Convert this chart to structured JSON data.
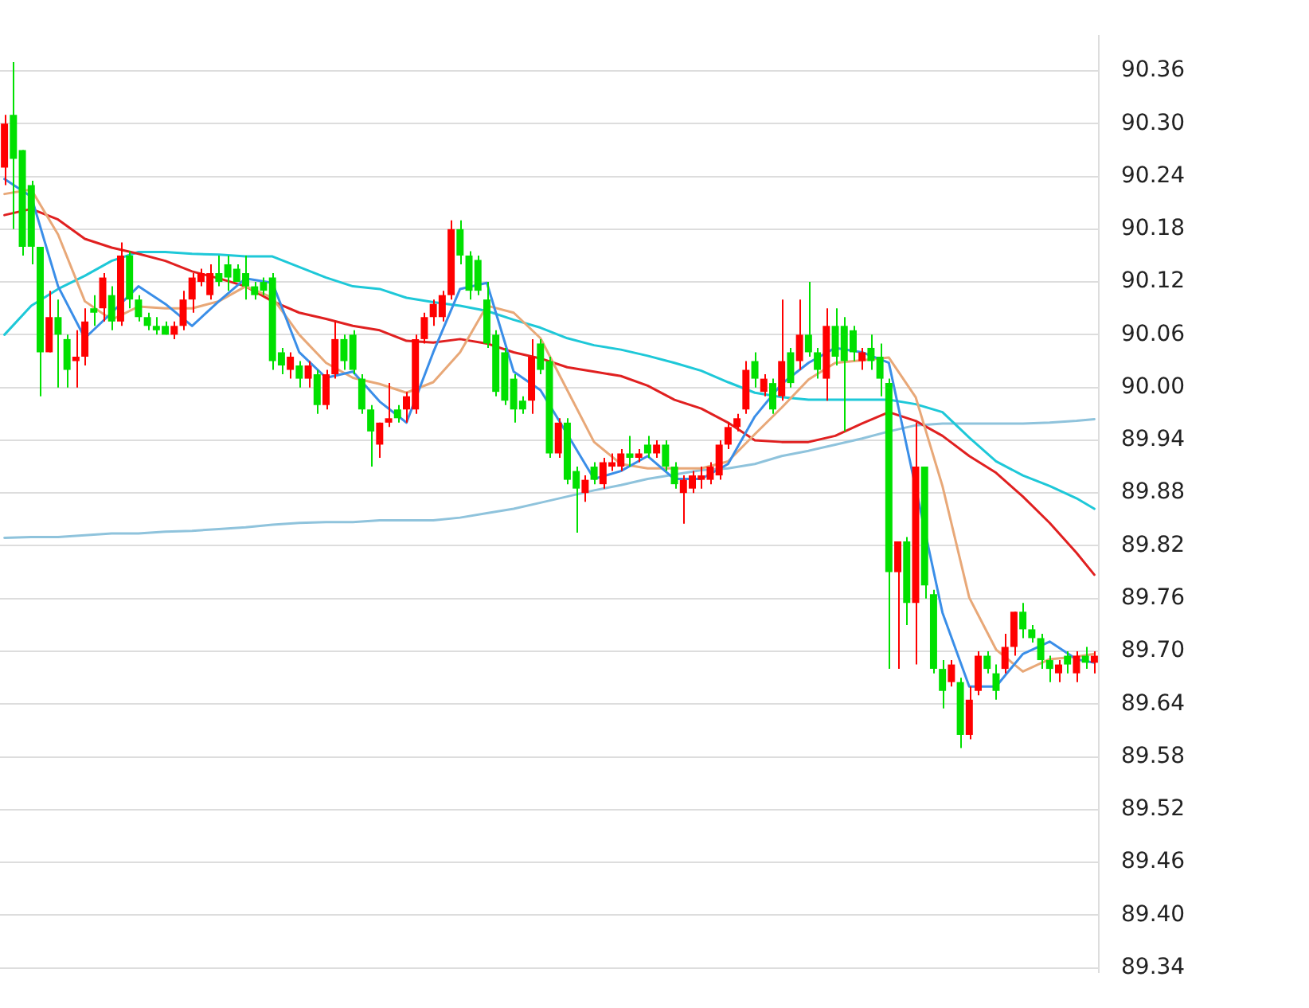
{
  "chart_data": {
    "type": "candlestick",
    "categories": [
      null,
      null,
      null,
      null,
      null,
      null,
      null,
      null,
      null,
      null,
      null,
      null,
      null,
      null,
      null,
      null,
      null,
      null,
      null,
      null,
      null,
      null,
      null,
      null,
      null,
      null,
      null,
      null,
      null,
      null,
      null,
      null,
      null,
      null,
      null,
      null,
      null,
      null,
      null,
      null,
      null,
      null,
      null,
      null,
      null,
      null,
      null,
      null,
      null,
      null,
      null,
      null,
      null,
      null,
      null,
      null,
      null,
      null,
      null,
      null,
      null,
      null,
      null,
      null,
      null,
      null,
      null,
      null,
      null,
      null,
      null,
      null,
      null,
      null,
      null,
      null,
      null,
      null,
      null,
      null,
      null,
      null,
      null,
      null,
      null,
      null,
      null,
      null,
      null,
      null,
      null,
      null,
      null,
      null,
      null,
      null,
      null,
      null,
      null,
      null,
      null,
      null,
      null,
      null,
      null,
      null,
      null,
      null,
      null,
      null,
      null,
      null,
      null,
      null,
      null,
      null,
      null,
      null,
      null,
      null,
      null,
      null,
      null
    ],
    "ohlc": [
      [
        90.25,
        90.31,
        90.23,
        90.3
      ],
      [
        90.31,
        90.37,
        90.18,
        90.26
      ],
      [
        90.27,
        90.27,
        90.15,
        90.16
      ],
      [
        90.23,
        90.235,
        90.14,
        90.16
      ],
      [
        90.16,
        90.16,
        89.99,
        90.04
      ],
      [
        90.04,
        90.11,
        90.04,
        90.08
      ],
      [
        90.08,
        90.1,
        90.0,
        90.06
      ],
      [
        90.055,
        90.06,
        90.0,
        90.02
      ],
      [
        90.03,
        90.065,
        90.0,
        90.035
      ],
      [
        90.035,
        90.09,
        90.025,
        90.075
      ],
      [
        90.09,
        90.105,
        90.07,
        90.085
      ],
      [
        90.09,
        90.13,
        90.075,
        90.125
      ],
      [
        90.105,
        90.115,
        90.065,
        90.075
      ],
      [
        90.075,
        90.165,
        90.07,
        90.15
      ],
      [
        90.15,
        90.155,
        90.09,
        90.1
      ],
      [
        90.1,
        90.105,
        90.075,
        90.08
      ],
      [
        90.08,
        90.085,
        90.065,
        90.07
      ],
      [
        90.07,
        90.08,
        90.06,
        90.065
      ],
      [
        90.07,
        90.075,
        90.06,
        90.06
      ],
      [
        90.06,
        90.075,
        90.055,
        90.07
      ],
      [
        90.07,
        90.11,
        90.065,
        90.1
      ],
      [
        90.1,
        90.13,
        90.085,
        90.125
      ],
      [
        90.12,
        90.135,
        90.115,
        90.13
      ],
      [
        90.105,
        90.14,
        90.1,
        90.13
      ],
      [
        90.13,
        90.15,
        90.115,
        90.12
      ],
      [
        90.14,
        90.15,
        90.11,
        90.125
      ],
      [
        90.135,
        90.14,
        90.12,
        90.12
      ],
      [
        90.13,
        90.15,
        90.1,
        90.115
      ],
      [
        90.115,
        90.12,
        90.1,
        90.105
      ],
      [
        90.12,
        90.125,
        90.105,
        90.11
      ],
      [
        90.125,
        90.13,
        90.02,
        90.03
      ],
      [
        90.04,
        90.045,
        90.015,
        90.025
      ],
      [
        90.02,
        90.04,
        90.01,
        90.035
      ],
      [
        90.025,
        90.03,
        90.0,
        90.01
      ],
      [
        90.01,
        90.03,
        90.0,
        90.025
      ],
      [
        90.015,
        90.02,
        89.97,
        89.98
      ],
      [
        89.98,
        90.02,
        89.975,
        90.015
      ],
      [
        90.015,
        90.075,
        90.01,
        90.055
      ],
      [
        90.055,
        90.06,
        90.02,
        90.03
      ],
      [
        90.06,
        90.065,
        90.015,
        90.02
      ],
      [
        90.01,
        90.015,
        89.97,
        89.975
      ],
      [
        89.975,
        89.98,
        89.91,
        89.95
      ],
      [
        89.935,
        89.96,
        89.92,
        89.96
      ],
      [
        89.96,
        90.005,
        89.955,
        89.965
      ],
      [
        89.975,
        89.98,
        89.96,
        89.965
      ],
      [
        89.975,
        89.995,
        89.96,
        89.99
      ],
      [
        89.975,
        90.06,
        89.97,
        90.055
      ],
      [
        90.055,
        90.085,
        90.05,
        90.08
      ],
      [
        90.08,
        90.1,
        90.07,
        90.095
      ],
      [
        90.08,
        90.11,
        90.075,
        90.105
      ],
      [
        90.105,
        90.19,
        90.1,
        90.18
      ],
      [
        90.18,
        90.19,
        90.14,
        90.15
      ],
      [
        90.15,
        90.155,
        90.1,
        90.11
      ],
      [
        90.145,
        90.15,
        90.105,
        90.11
      ],
      [
        90.1,
        90.12,
        90.045,
        90.05
      ],
      [
        90.06,
        90.065,
        89.99,
        89.995
      ],
      [
        90.04,
        90.045,
        89.98,
        89.985
      ],
      [
        90.01,
        90.015,
        89.96,
        89.975
      ],
      [
        89.985,
        89.99,
        89.97,
        89.975
      ],
      [
        89.985,
        90.055,
        89.97,
        90.035
      ],
      [
        90.05,
        90.055,
        90.015,
        90.02
      ],
      [
        90.03,
        90.035,
        89.92,
        89.925
      ],
      [
        89.925,
        89.965,
        89.92,
        89.96
      ],
      [
        89.96,
        89.965,
        89.89,
        89.895
      ],
      [
        89.905,
        89.91,
        89.835,
        89.885
      ],
      [
        89.88,
        89.9,
        89.87,
        89.895
      ],
      [
        89.91,
        89.915,
        89.89,
        89.895
      ],
      [
        89.89,
        89.92,
        89.885,
        89.915
      ],
      [
        89.91,
        89.925,
        89.905,
        89.915
      ],
      [
        89.91,
        89.93,
        89.905,
        89.925
      ],
      [
        89.925,
        89.945,
        89.91,
        89.92
      ],
      [
        89.92,
        89.93,
        89.915,
        89.925
      ],
      [
        89.935,
        89.945,
        89.92,
        89.925
      ],
      [
        89.925,
        89.94,
        89.92,
        89.935
      ],
      [
        89.935,
        89.94,
        89.905,
        89.91
      ],
      [
        89.91,
        89.915,
        89.885,
        89.89
      ],
      [
        89.88,
        89.9,
        89.845,
        89.895
      ],
      [
        89.885,
        89.905,
        89.88,
        89.9
      ],
      [
        89.895,
        89.91,
        89.885,
        89.9
      ],
      [
        89.895,
        89.915,
        89.89,
        89.91
      ],
      [
        89.9,
        89.94,
        89.895,
        89.935
      ],
      [
        89.935,
        89.96,
        89.93,
        89.955
      ],
      [
        89.955,
        89.97,
        89.95,
        89.965
      ],
      [
        89.975,
        90.03,
        89.97,
        90.02
      ],
      [
        90.03,
        90.04,
        90.0,
        90.01
      ],
      [
        89.995,
        90.015,
        89.99,
        90.01
      ],
      [
        90.005,
        90.01,
        89.97,
        89.975
      ],
      [
        89.99,
        90.1,
        89.985,
        90.03
      ],
      [
        90.04,
        90.045,
        90.0,
        90.005
      ],
      [
        90.03,
        90.1,
        90.02,
        90.06
      ],
      [
        90.06,
        90.12,
        90.035,
        90.04
      ],
      [
        90.04,
        90.045,
        90.01,
        90.02
      ],
      [
        90.01,
        90.09,
        89.985,
        90.07
      ],
      [
        90.07,
        90.09,
        90.025,
        90.035
      ],
      [
        90.07,
        90.08,
        89.95,
        90.03
      ],
      [
        90.065,
        90.07,
        90.03,
        90.04
      ],
      [
        90.03,
        90.045,
        90.02,
        90.04
      ],
      [
        90.045,
        90.06,
        90.02,
        90.03
      ],
      [
        90.035,
        90.05,
        89.99,
        90.01
      ],
      [
        90.005,
        90.01,
        89.68,
        89.79
      ],
      [
        89.79,
        89.825,
        89.68,
        89.825
      ],
      [
        89.825,
        89.83,
        89.73,
        89.755
      ],
      [
        89.755,
        89.96,
        89.685,
        89.91
      ],
      [
        89.91,
        89.91,
        89.76,
        89.775
      ],
      [
        89.765,
        89.77,
        89.675,
        89.68
      ],
      [
        89.68,
        89.69,
        89.635,
        89.655
      ],
      [
        89.665,
        89.69,
        89.66,
        89.685
      ],
      [
        89.665,
        89.67,
        89.59,
        89.605
      ],
      [
        89.605,
        89.66,
        89.6,
        89.645
      ],
      [
        89.655,
        89.7,
        89.65,
        89.695
      ],
      [
        89.695,
        89.7,
        89.675,
        89.68
      ],
      [
        89.675,
        89.685,
        89.645,
        89.655
      ],
      [
        89.68,
        89.72,
        89.675,
        89.705
      ],
      [
        89.705,
        89.745,
        89.695,
        89.745
      ],
      [
        89.745,
        89.755,
        89.715,
        89.725
      ],
      [
        89.725,
        89.73,
        89.71,
        89.715
      ],
      [
        89.715,
        89.72,
        89.68,
        89.69
      ],
      [
        89.69,
        89.695,
        89.665,
        89.68
      ],
      [
        89.675,
        89.69,
        89.665,
        89.685
      ],
      [
        89.695,
        89.7,
        89.675,
        89.685
      ],
      [
        89.675,
        89.7,
        89.665,
        89.695
      ],
      [
        89.695,
        89.705,
        89.68,
        89.687
      ],
      [
        89.687,
        89.7,
        89.675,
        89.695
      ]
    ],
    "colors": [
      "#ff0000",
      "#00e000",
      "#00e000",
      "#00e000",
      "#00e000",
      "#ff0000",
      "#00e000",
      "#00e000",
      "#ff0000",
      "#ff0000",
      "#00e000",
      "#ff0000",
      "#00e000",
      "#ff0000",
      "#00e000",
      "#00e000",
      "#00e000",
      "#00e000",
      "#00e000",
      "#ff0000",
      "#ff0000",
      "#ff0000",
      "#ff0000",
      "#ff0000",
      "#00e000",
      "#00e000",
      "#00e000",
      "#00e000",
      "#00e000",
      "#00e000",
      "#00e000",
      "#00e000",
      "#ff0000",
      "#00e000",
      "#ff0000",
      "#00e000",
      "#ff0000",
      "#ff0000",
      "#00e000",
      "#00e000",
      "#00e000",
      "#00e000",
      "#ff0000",
      "#ff0000",
      "#00e000",
      "#ff0000",
      "#ff0000",
      "#ff0000",
      "#ff0000",
      "#ff0000",
      "#ff0000",
      "#00e000",
      "#00e000",
      "#00e000",
      "#00e000",
      "#00e000",
      "#00e000",
      "#00e000",
      "#00e000",
      "#ff0000",
      "#00e000",
      "#00e000",
      "#ff0000",
      "#00e000",
      "#00e000",
      "#ff0000",
      "#00e000",
      "#ff0000",
      "#ff0000",
      "#ff0000",
      "#00e000",
      "#ff0000",
      "#00e000",
      "#ff0000",
      "#00e000",
      "#00e000",
      "#ff0000",
      "#ff0000",
      "#ff0000",
      "#ff0000",
      "#ff0000",
      "#ff0000",
      "#ff0000",
      "#ff0000",
      "#00e000",
      "#ff0000",
      "#00e000",
      "#ff0000",
      "#00e000",
      "#ff0000",
      "#00e000",
      "#00e000",
      "#ff0000",
      "#00e000",
      "#00e000",
      "#00e000",
      "#ff0000",
      "#00e000",
      "#00e000",
      "#00e000",
      "#ff0000",
      "#00e000",
      "#ff0000",
      "#00e000",
      "#00e000",
      "#00e000",
      "#ff0000",
      "#00e000",
      "#ff0000",
      "#ff0000",
      "#00e000",
      "#00e000",
      "#ff0000",
      "#ff0000",
      "#00e000",
      "#00e000",
      "#00e000",
      "#00e000",
      "#ff0000",
      "#00e000",
      "#ff0000",
      "#00e000",
      "#ff0000"
    ],
    "series": [
      {
        "type": "line",
        "color": "#3a8ee8",
        "values": [
          90.237,
          null,
          null,
          90.217,
          null,
          null,
          90.115,
          null,
          null,
          90.056,
          null,
          null,
          90.085,
          null,
          null,
          90.115,
          null,
          null,
          90.095,
          null,
          null,
          90.07,
          null,
          null,
          90.098,
          null,
          null,
          90.124,
          null,
          null,
          90.119,
          null,
          null,
          90.04,
          null,
          null,
          90.011,
          null,
          null,
          90.018,
          null,
          null,
          89.984,
          null,
          null,
          89.96,
          null,
          null,
          90.04,
          null,
          null,
          90.112,
          null,
          null,
          90.119,
          null,
          null,
          90.018,
          null,
          null,
          89.997,
          null,
          null,
          89.947,
          null,
          null,
          89.896,
          null,
          null,
          89.905,
          null,
          null,
          89.922,
          null,
          null,
          89.896,
          null,
          null,
          89.896,
          null,
          null,
          89.913,
          null,
          null,
          89.967,
          null,
          null,
          90.004,
          null,
          null,
          90.028,
          null,
          null,
          90.045,
          null,
          null,
          90.04,
          null,
          null,
          90.028,
          null,
          null,
          null,
          null,
          null,
          89.744,
          null,
          null,
          89.66,
          null,
          null,
          89.66,
          null,
          null,
          89.697,
          null,
          null,
          89.711,
          null,
          null,
          89.691,
          null,
          89.687
        ]
      },
      {
        "type": "line",
        "color": "#e8a878",
        "values": [
          90.22,
          null,
          null,
          90.225,
          null,
          null,
          90.174,
          null,
          null,
          90.098,
          null,
          null,
          90.077,
          null,
          null,
          90.092,
          null,
          null,
          90.09,
          null,
          null,
          90.09,
          null,
          null,
          90.098,
          null,
          null,
          90.115,
          null,
          null,
          90.102,
          null,
          null,
          90.06,
          null,
          null,
          90.028,
          null,
          null,
          90.011,
          null,
          null,
          90.004,
          null,
          null,
          89.994,
          null,
          null,
          90.006,
          null,
          null,
          90.04,
          null,
          null,
          90.093,
          null,
          null,
          90.085,
          null,
          null,
          90.056,
          null,
          null,
          89.997,
          null,
          null,
          89.938,
          null,
          null,
          89.913,
          null,
          null,
          89.908,
          null,
          null,
          89.908,
          null,
          null,
          89.908,
          null,
          null,
          89.916,
          null,
          null,
          89.947,
          null,
          null,
          89.977,
          null,
          null,
          90.009,
          null,
          null,
          90.028,
          null,
          null,
          90.031,
          null,
          null,
          90.034,
          null,
          null,
          89.989,
          null,
          null,
          89.888,
          null,
          null,
          89.761,
          null,
          null,
          89.702,
          null,
          null,
          89.677,
          null,
          null,
          89.691,
          null,
          null,
          89.694,
          null,
          89.697
        ]
      },
      {
        "type": "line",
        "color": "#e02020",
        "values": [
          90.196,
          null,
          null,
          90.203,
          null,
          null,
          90.191,
          null,
          null,
          90.169,
          null,
          null,
          90.159,
          null,
          null,
          90.152,
          null,
          null,
          90.144,
          null,
          null,
          90.132,
          null,
          null,
          90.124,
          null,
          null,
          90.115,
          null,
          null,
          90.098,
          null,
          null,
          90.085,
          null,
          null,
          90.078,
          null,
          null,
          90.07,
          null,
          null,
          90.065,
          null,
          null,
          90.053,
          null,
          null,
          90.051,
          null,
          null,
          90.055,
          null,
          null,
          90.05,
          null,
          null,
          90.04,
          null,
          null,
          90.033,
          null,
          null,
          90.023,
          null,
          null,
          90.018,
          null,
          null,
          90.013,
          null,
          null,
          90.002,
          null,
          null,
          89.986,
          null,
          null,
          89.976,
          null,
          null,
          89.96,
          null,
          null,
          89.94,
          null,
          null,
          89.938,
          null,
          null,
          89.938,
          null,
          null,
          89.945,
          null,
          null,
          89.959,
          null,
          null,
          89.972,
          null,
          null,
          89.962,
          null,
          null,
          89.945,
          null,
          null,
          89.922,
          null,
          null,
          89.903,
          null,
          null,
          89.876,
          null,
          null,
          89.846,
          null,
          null,
          89.812,
          null,
          89.787
        ]
      },
      {
        "type": "line",
        "color": "#1ec8d8",
        "values": [
          90.06,
          null,
          null,
          90.093,
          null,
          null,
          90.112,
          null,
          null,
          90.127,
          null,
          null,
          90.144,
          null,
          null,
          90.154,
          null,
          null,
          90.154,
          null,
          null,
          90.152,
          null,
          null,
          90.151,
          null,
          null,
          90.149,
          null,
          null,
          90.149,
          null,
          null,
          90.137,
          null,
          null,
          90.125,
          null,
          null,
          90.115,
          null,
          null,
          90.112,
          null,
          null,
          90.102,
          null,
          null,
          90.097,
          null,
          null,
          90.093,
          null,
          null,
          90.087,
          null,
          null,
          90.077,
          null,
          null,
          90.068,
          null,
          null,
          90.056,
          null,
          null,
          90.048,
          null,
          null,
          90.043,
          null,
          null,
          90.036,
          null,
          null,
          90.028,
          null,
          null,
          90.019,
          null,
          null,
          90.006,
          null,
          null,
          89.994,
          null,
          null,
          89.989,
          null,
          null,
          89.986,
          null,
          null,
          89.986,
          null,
          null,
          89.986,
          null,
          null,
          89.986,
          null,
          null,
          89.981,
          null,
          null,
          89.972,
          null,
          null,
          89.943,
          null,
          null,
          89.916,
          null,
          null,
          89.9,
          null,
          null,
          89.888,
          null,
          null,
          89.874,
          null,
          89.862
        ]
      },
      {
        "type": "line",
        "color": "#8fc3dc",
        "values": [
          89.829,
          null,
          null,
          89.83,
          null,
          null,
          89.83,
          null,
          null,
          89.832,
          null,
          null,
          89.834,
          null,
          null,
          89.834,
          null,
          null,
          89.836,
          null,
          null,
          89.837,
          null,
          null,
          89.839,
          null,
          null,
          89.841,
          null,
          null,
          89.844,
          null,
          null,
          89.846,
          null,
          null,
          89.847,
          null,
          null,
          89.847,
          null,
          null,
          89.849,
          null,
          null,
          89.849,
          null,
          null,
          89.849,
          null,
          null,
          89.852,
          null,
          null,
          89.857,
          null,
          null,
          89.862,
          null,
          null,
          89.869,
          null,
          null,
          89.876,
          null,
          null,
          89.883,
          null,
          null,
          89.889,
          null,
          null,
          89.896,
          null,
          null,
          89.901,
          null,
          null,
          89.906,
          null,
          null,
          89.908,
          null,
          null,
          89.913,
          null,
          null,
          89.922,
          null,
          null,
          89.928,
          null,
          null,
          89.935,
          null,
          null,
          89.942,
          null,
          null,
          89.95,
          null,
          null,
          89.957,
          null,
          null,
          89.959,
          null,
          null,
          89.959,
          null,
          null,
          89.959,
          null,
          null,
          89.959,
          null,
          null,
          89.96,
          null,
          null,
          89.962,
          null,
          89.964
        ]
      }
    ],
    "ylim": [
      89.335,
      90.4
    ],
    "yticks": [
      {
        "value": 89.34,
        "label": "89.34"
      },
      {
        "value": 89.4,
        "label": "89.40"
      },
      {
        "value": 89.46,
        "label": "89.46"
      },
      {
        "value": 89.52,
        "label": "89.52"
      },
      {
        "value": 89.58,
        "label": "89.58"
      },
      {
        "value": 89.64,
        "label": "89.64"
      },
      {
        "value": 89.7,
        "label": "89.70"
      },
      {
        "value": 89.76,
        "label": "89.76"
      },
      {
        "value": 89.82,
        "label": "89.82"
      },
      {
        "value": 89.88,
        "label": "89.88"
      },
      {
        "value": 89.94,
        "label": "89.94"
      },
      {
        "value": 90.0,
        "label": "90.00"
      },
      {
        "value": 90.06,
        "label": "90.06"
      },
      {
        "value": 90.12,
        "label": "90.12"
      },
      {
        "value": 90.18,
        "label": "90.18"
      },
      {
        "value": 90.24,
        "label": "90.24"
      },
      {
        "value": 90.3,
        "label": "90.30"
      },
      {
        "value": 90.36,
        "label": "90.36"
      }
    ],
    "grid": "y",
    "legend": false,
    "tick_labels": "y",
    "marker": "none"
  }
}
